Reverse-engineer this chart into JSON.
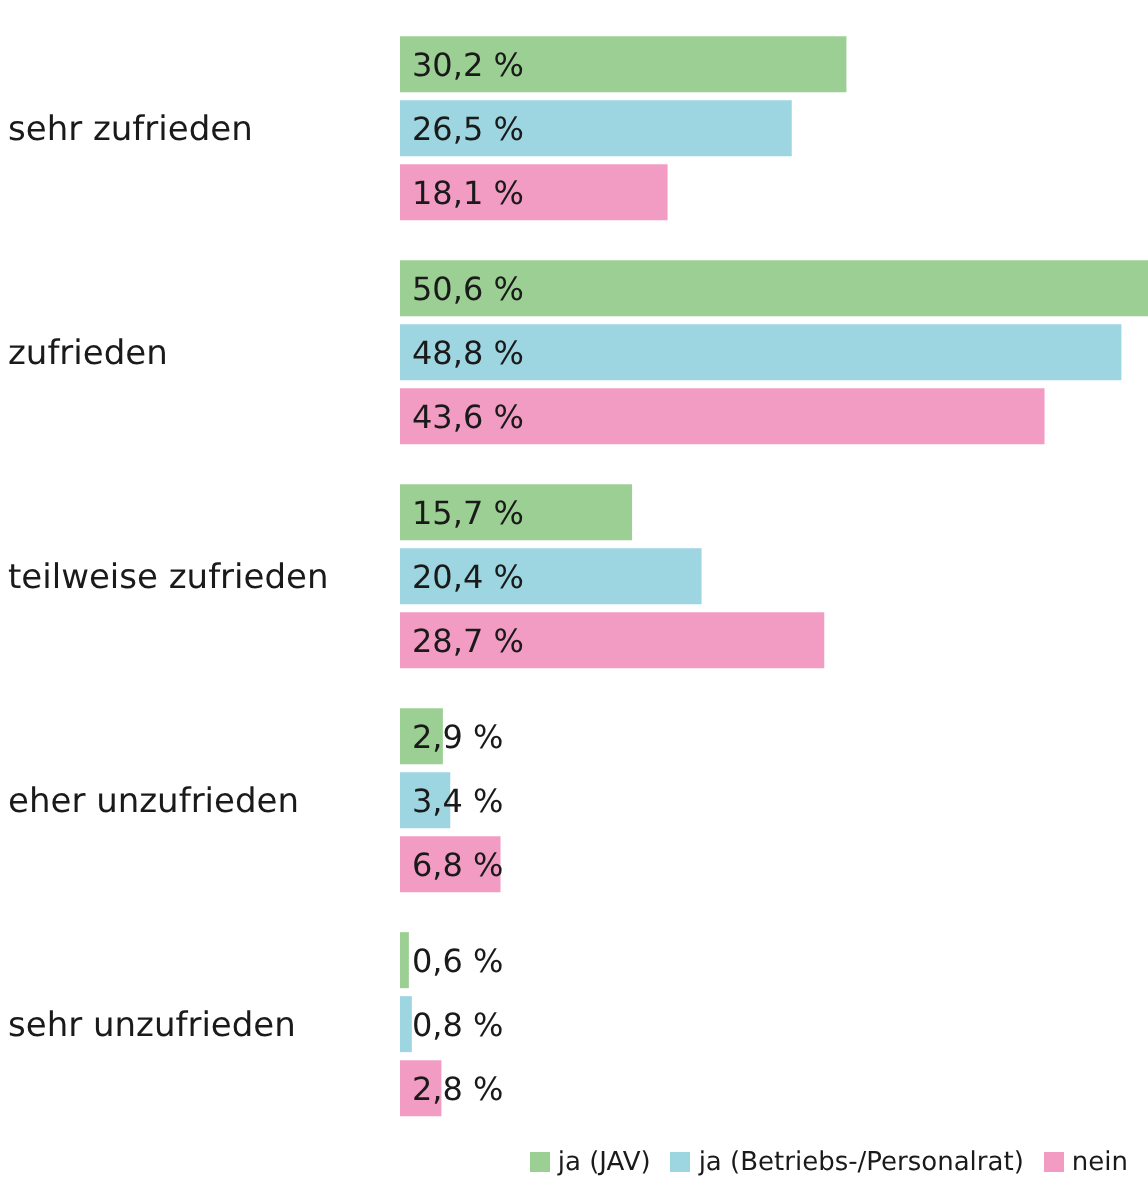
{
  "chart_data": {
    "type": "bar",
    "orientation": "horizontal",
    "categories": [
      "sehr zufrieden",
      "zufrieden",
      "teilweise zufrieden",
      "eher unzufrieden",
      "sehr unzufrieden"
    ],
    "series": [
      {
        "name": "ja (JAV)",
        "color": "#9ccf93",
        "values": [
          30.2,
          50.6,
          15.7,
          2.9,
          0.6
        ],
        "value_labels": [
          "30,2 %",
          "50,6 %",
          "15,7 %",
          "2,9 %",
          "0,6 %"
        ]
      },
      {
        "name": "ja (Betriebs-/Personalrat)",
        "color": "#9dd5e1",
        "values": [
          26.5,
          48.8,
          20.4,
          3.4,
          0.8
        ],
        "value_labels": [
          "26,5 %",
          "48,8 %",
          "20,4 %",
          "3,4 %",
          "0,8 %"
        ]
      },
      {
        "name": "nein",
        "color": "#f29cc4",
        "values": [
          18.1,
          43.6,
          28.7,
          6.8,
          2.8
        ],
        "value_labels": [
          "18,1 %",
          "43,6 %",
          "28,7 %",
          "6,8 %",
          "2,8 %"
        ]
      }
    ],
    "legend": "bottom right",
    "grid": false
  }
}
